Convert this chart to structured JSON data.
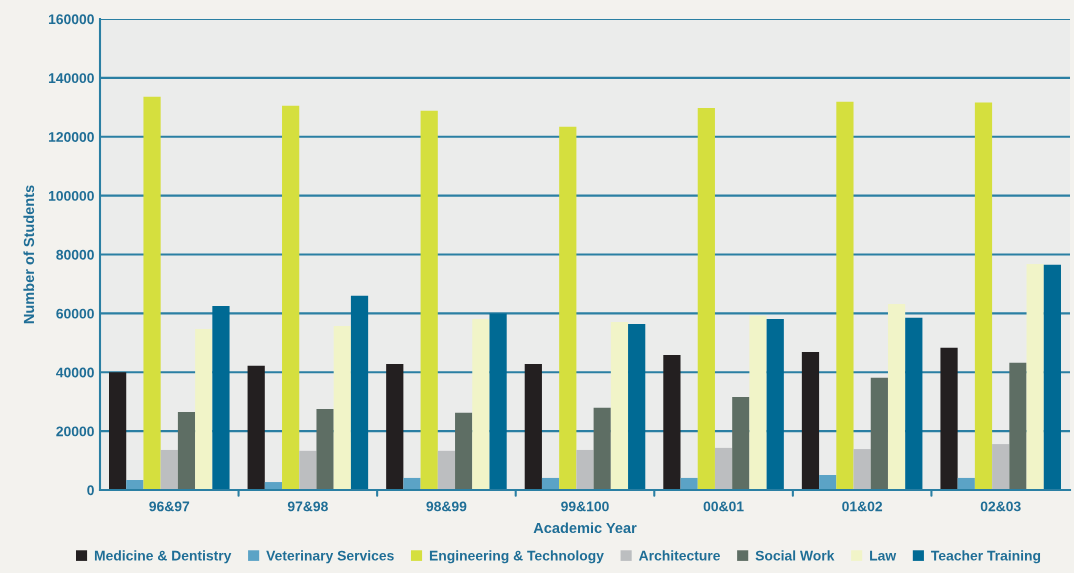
{
  "chart_data": {
    "type": "bar",
    "xlabel": "Academic Year",
    "ylabel": "Number of Students",
    "categories": [
      "96&97",
      "97&98",
      "98&99",
      "99&100",
      "00&01",
      "01&02",
      "02&03"
    ],
    "series": [
      {
        "name": "Medicine & Dentistry",
        "color": "#231f20",
        "values": [
          40000,
          42200,
          42800,
          42800,
          45900,
          46900,
          48300
        ]
      },
      {
        "name": "Veterinary Services",
        "color": "#5ba3c6",
        "values": [
          3400,
          2700,
          4100,
          4100,
          4100,
          5100,
          4100
        ]
      },
      {
        "name": "Engineering & Technology",
        "color": "#d5df3e",
        "values": [
          133600,
          130500,
          128800,
          123400,
          129800,
          131900,
          131600
        ]
      },
      {
        "name": "Architecture",
        "color": "#bcbec0",
        "values": [
          13600,
          13300,
          13300,
          13600,
          14300,
          13900,
          15600
        ]
      },
      {
        "name": "Social Work",
        "color": "#5e6e64",
        "values": [
          26500,
          27500,
          26200,
          27900,
          31600,
          38100,
          43200
        ]
      },
      {
        "name": "Law",
        "color": "#f1f4c8",
        "values": [
          54700,
          55700,
          58100,
          57100,
          59300,
          63200,
          76800
        ]
      },
      {
        "name": "Teacher Training",
        "color": "#006a94",
        "values": [
          62500,
          66000,
          60000,
          56400,
          58100,
          58500,
          76500
        ]
      }
    ],
    "ylim": [
      0,
      160000
    ],
    "yticks": [
      0,
      20000,
      40000,
      60000,
      80000,
      100000,
      120000,
      140000,
      160000
    ],
    "grid": "y",
    "legend": "bottom"
  }
}
